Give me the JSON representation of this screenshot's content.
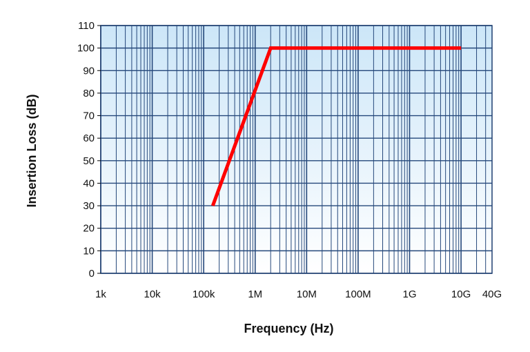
{
  "chart_data": {
    "type": "line",
    "title": "",
    "xlabel": "Frequency (Hz)",
    "ylabel": "Insertion Loss (dB)",
    "x_scale": "log",
    "xlim": [
      1000,
      40000000000
    ],
    "ylim": [
      0,
      110
    ],
    "x_ticks": [
      {
        "value": 1000,
        "label": "1k"
      },
      {
        "value": 10000,
        "label": "10k"
      },
      {
        "value": 100000,
        "label": "100k"
      },
      {
        "value": 1000000,
        "label": "1M"
      },
      {
        "value": 10000000,
        "label": "10M"
      },
      {
        "value": 100000000,
        "label": "100M"
      },
      {
        "value": 1000000000,
        "label": "1G"
      },
      {
        "value": 10000000000,
        "label": "10G"
      },
      {
        "value": 40000000000,
        "label": "40G"
      }
    ],
    "y_ticks": [
      0,
      10,
      20,
      30,
      40,
      50,
      60,
      70,
      80,
      90,
      100,
      110
    ],
    "grid": true,
    "legend": "none",
    "series": [
      {
        "color": "#ff0000",
        "points": [
          {
            "x": 150000,
            "y": 30
          },
          {
            "x": 2000000,
            "y": 100
          },
          {
            "x": 10000000000,
            "y": 100
          }
        ]
      }
    ],
    "colors": {
      "plot_background_top": "#cce6f8",
      "plot_background_bottom": "#ffffff",
      "grid_line": "#24477a",
      "plot_border": "#1f3f70"
    }
  }
}
